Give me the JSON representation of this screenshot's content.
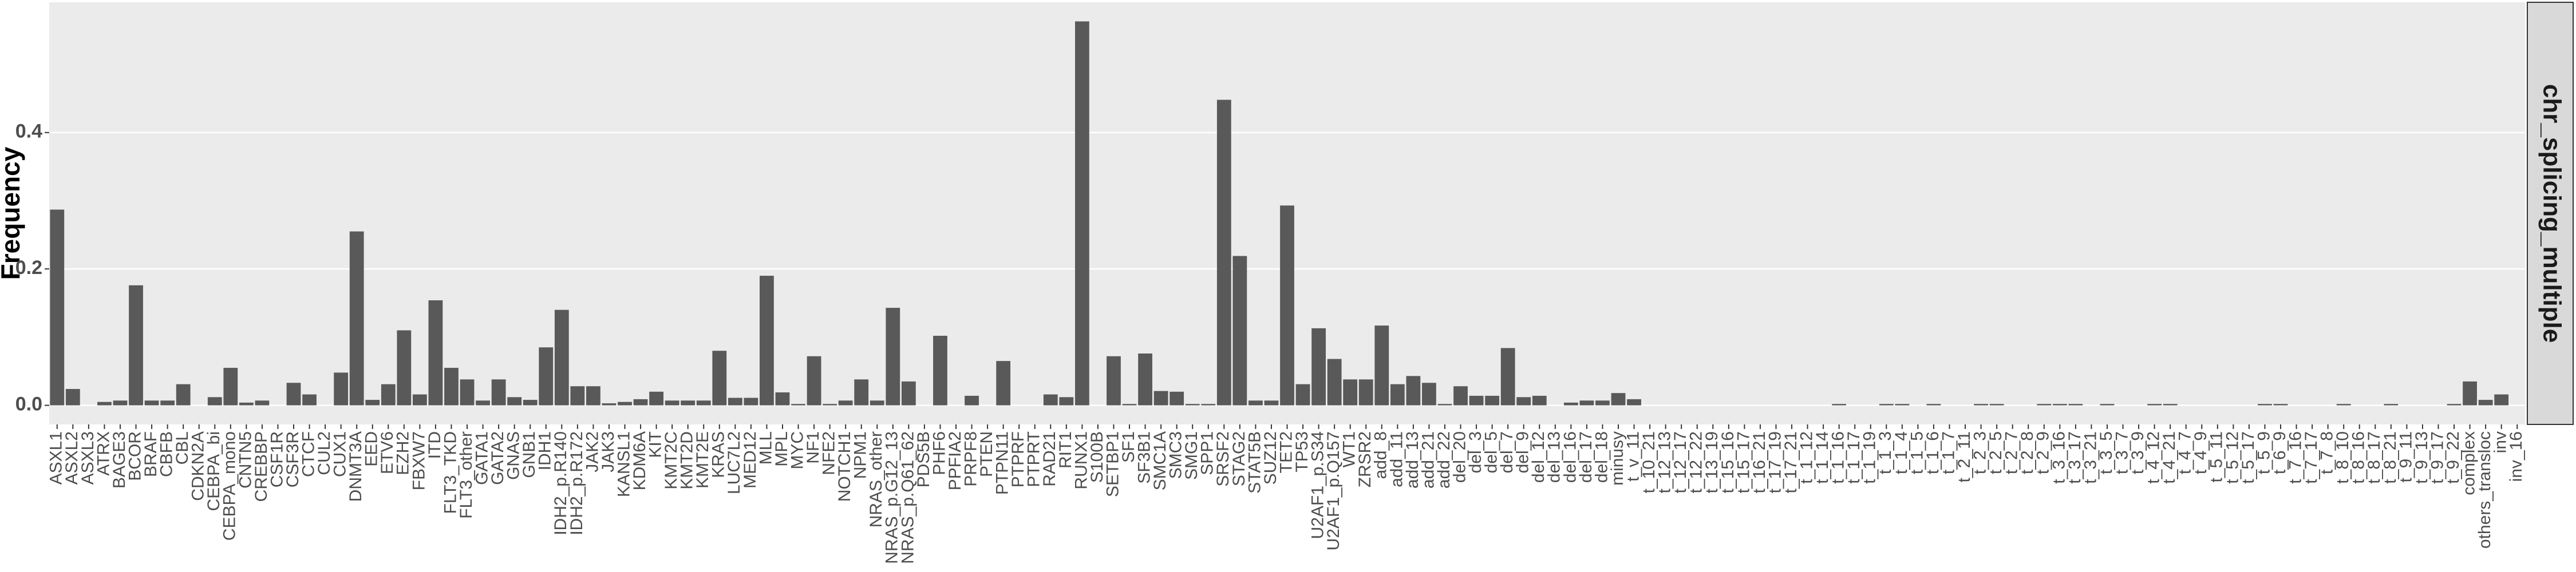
{
  "chart_data": {
    "type": "bar",
    "facet_label": "chr_splicing_multiple",
    "y_label": "Frequency",
    "color": "#595959",
    "ylim": [
      -0.028,
      0.591
    ],
    "yticks": [
      {
        "value": 0,
        "label": "0.0"
      },
      0.2,
      0.4
    ],
    "grid": true,
    "categories": [
      "ASXL1",
      "ASXL2",
      "ASXL3",
      "ATRX",
      "BAGE3",
      "BCOR",
      "BRAF",
      "CBFB",
      "CBL",
      "CDKN2A",
      "CEBPA_bi",
      "CEBPA_mono",
      "CNTN5",
      "CREBBP",
      "CSF1R",
      "CSF3R",
      "CTCF",
      "CUL2",
      "CUX1",
      "DNMT3A",
      "EED",
      "ETV6",
      "EZH2",
      "FBXW7",
      "ITD",
      "FLT3_TKD",
      "FLT3_other",
      "GATA1",
      "GATA2",
      "GNAS",
      "GNB1",
      "IDH1",
      "IDH2_p.R140",
      "IDH2_p.R172",
      "JAK2",
      "JAK3",
      "KANSL1",
      "KDM6A",
      "KIT",
      "KMT2C",
      "KMT2D",
      "KMT2E",
      "KRAS",
      "LUC7L2",
      "MED12",
      "MLL",
      "MPL",
      "MYC",
      "NF1",
      "NFE2",
      "NOTCH1",
      "NPM1",
      "NRAS_other",
      "NRAS_p.G12_13",
      "NRAS_p.Q61_62",
      "PDS5B",
      "PHF6",
      "PPFIA2",
      "PRPF8",
      "PTEN",
      "PTPN11",
      "PTPRF",
      "PTPRT",
      "RAD21",
      "RIT1",
      "RUNX1",
      "S100B",
      "SETBP1",
      "SF1",
      "SF3B1",
      "SMC1A",
      "SMC3",
      "SMG1",
      "SPP1",
      "SRSF2",
      "STAG2",
      "STAT5B",
      "SUZ12",
      "TET2",
      "TP53",
      "U2AF1_p.S34",
      "U2AF1_p.Q157",
      "WT1",
      "ZRSR2",
      "add_8",
      "add_11",
      "add_13",
      "add_21",
      "add_22",
      "del_20",
      "del_3",
      "del_5",
      "del_7",
      "del_9",
      "del_12",
      "del_13",
      "del_16",
      "del_17",
      "del_18",
      "minusy",
      "t_v_11",
      "t_10_21",
      "t_12_13",
      "t_12_17",
      "t_12_22",
      "t_13_19",
      "t_15_16",
      "t_15_17",
      "t_16_21",
      "t_17_19",
      "t_17_21",
      "t_1_12",
      "t_1_14",
      "t_1_16",
      "t_1_17",
      "t_1_19",
      "t_1_3",
      "t_1_4",
      "t_1_5",
      "t_1_6",
      "t_1_7",
      "t_2_11",
      "t_2_3",
      "t_2_5",
      "t_2_7",
      "t_2_8",
      "t_2_9",
      "t_3_16",
      "t_3_17",
      "t_3_21",
      "t_3_5",
      "t_3_7",
      "t_3_9",
      "t_4_12",
      "t_4_21",
      "t_4_7",
      "t_4_9",
      "t_5_11",
      "t_5_12",
      "t_5_17",
      "t_5_9",
      "t_6_9",
      "t_7_16",
      "t_7_17",
      "t_7_8",
      "t_8_10",
      "t_8_16",
      "t_8_17",
      "t_8_21",
      "t_9_11",
      "t_9_13",
      "t_9_17",
      "t_9_22",
      "complex",
      "others_transloc",
      "inv",
      "inv_16"
    ],
    "values": [
      0.287,
      0.024,
      0,
      0.005,
      0.007,
      0.176,
      0.007,
      0.007,
      0.031,
      0,
      0.012,
      0.055,
      0.004,
      0.007,
      0,
      0.033,
      0.016,
      0,
      0.048,
      0.255,
      0.008,
      0.031,
      0.11,
      0.016,
      0.154,
      0.055,
      0.038,
      0.007,
      0.038,
      0.012,
      0.008,
      0.085,
      0.14,
      0.028,
      0.028,
      0.003,
      0.005,
      0.009,
      0.02,
      0.007,
      0.007,
      0.007,
      0.08,
      0.011,
      0.011,
      0.19,
      0.019,
      0.002,
      0.072,
      0.002,
      0.007,
      0.038,
      0.007,
      0.143,
      0.035,
      0,
      0.102,
      0,
      0.014,
      0,
      0.065,
      0,
      0,
      0.016,
      0.012,
      0.563,
      0,
      0.072,
      0.002,
      0.076,
      0.021,
      0.02,
      0.002,
      0.002,
      0.448,
      0.219,
      0.007,
      0.007,
      0.293,
      0.031,
      0.113,
      0.068,
      0.038,
      0.038,
      0.117,
      0.031,
      0.043,
      0.033,
      0.002,
      0.028,
      0.014,
      0.014,
      0.084,
      0.012,
      0.014,
      0,
      0.004,
      0.007,
      0.007,
      0.018,
      0.009,
      0,
      0,
      0,
      0,
      0,
      0,
      0,
      0,
      0,
      0,
      0,
      0,
      0.002,
      0,
      0,
      0.002,
      0.002,
      0,
      0.002,
      0,
      0,
      0.002,
      0.002,
      0,
      0,
      0.002,
      0.002,
      0.002,
      0,
      0.002,
      0,
      0,
      0.002,
      0.002,
      0,
      0,
      0,
      0,
      0,
      0.002,
      0.002,
      0,
      0,
      0,
      0.002,
      0,
      0,
      0.002,
      0,
      0,
      0,
      0.002,
      0.035,
      0.008,
      0.016,
      0
    ]
  }
}
